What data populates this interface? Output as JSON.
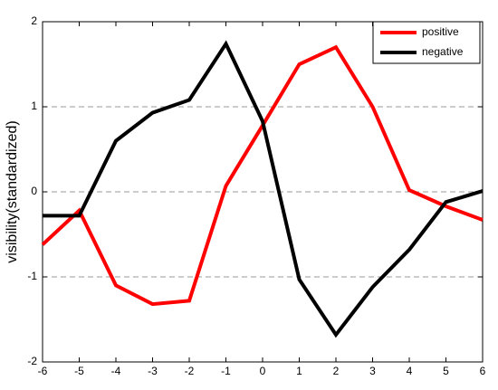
{
  "chart_data": {
    "type": "line",
    "ylabel": "visibility(standardized)",
    "x": [
      -6,
      -5,
      -4,
      -3,
      -2,
      -1,
      0,
      1,
      2,
      3,
      4,
      5,
      6
    ],
    "series": [
      {
        "name": "positive",
        "color": "#ff0000",
        "values": [
          -0.62,
          -0.22,
          -1.1,
          -1.32,
          -1.28,
          0.07,
          0.78,
          1.5,
          1.7,
          1.0,
          0.02,
          -0.17,
          -0.33
        ]
      },
      {
        "name": "negative",
        "color": "#000000",
        "values": [
          -0.28,
          -0.28,
          0.6,
          0.93,
          1.08,
          1.74,
          0.83,
          -1.03,
          -1.68,
          -1.12,
          -0.68,
          -0.12,
          0.01
        ]
      }
    ],
    "xlim": [
      -6,
      6
    ],
    "xticks": [
      -6,
      -5,
      -4,
      -3,
      -2,
      -1,
      0,
      1,
      2,
      3,
      4,
      5,
      6
    ],
    "ylim": [
      -2,
      2
    ],
    "yticks": [
      -2,
      -1,
      0,
      1,
      2
    ],
    "grid": true,
    "legend": "top-right"
  }
}
